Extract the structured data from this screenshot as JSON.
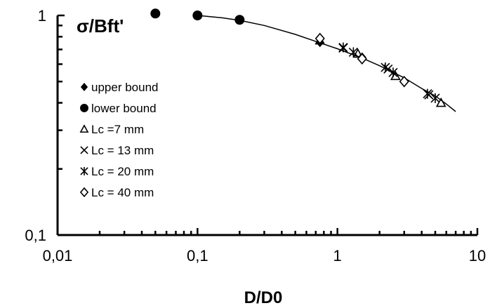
{
  "chart_data": {
    "type": "scatter",
    "xlabel": "D/D0",
    "ylabel": "σ/Bft'",
    "xscale": "log",
    "yscale": "log",
    "xlim": [
      0.01,
      10
    ],
    "ylim": [
      0.1,
      1
    ],
    "x_ticks": [
      {
        "value": 0.01,
        "label": "0,01"
      },
      {
        "value": 0.1,
        "label": "0,1"
      },
      {
        "value": 1,
        "label": "1"
      },
      {
        "value": 10,
        "label": "10"
      }
    ],
    "y_ticks": [
      {
        "value": 0.1,
        "label": "0,1"
      },
      {
        "value": 1,
        "label": "1"
      }
    ],
    "grid": false,
    "legend_position": "left",
    "series": [
      {
        "name": "upper bound",
        "marker": "diamond-filled",
        "x": [
          0.75,
          1.5
        ],
        "y": [
          0.755,
          0.645
        ]
      },
      {
        "name": "lower bound",
        "marker": "circle-filled",
        "x": [
          0.05,
          0.1,
          0.2
        ],
        "y": [
          1.02,
          1.0,
          0.955
        ]
      },
      {
        "name": "Lc =7 mm",
        "marker": "triangle-open",
        "x": [
          0.75,
          1.4,
          2.6,
          5.5
        ],
        "y": [
          0.77,
          0.67,
          0.53,
          0.4
        ]
      },
      {
        "name": "Lc = 13 mm",
        "marker": "x",
        "x": [
          1.1,
          2.3,
          4.5
        ],
        "y": [
          0.71,
          0.57,
          0.435
        ]
      },
      {
        "name": "Lc = 20 mm",
        "marker": "asterisk",
        "x": [
          1.1,
          1.3,
          2.2,
          2.5,
          4.4,
          5.0
        ],
        "y": [
          0.715,
          0.68,
          0.58,
          0.55,
          0.44,
          0.42
        ]
      },
      {
        "name": "Lc = 40 mm",
        "marker": "diamond-open",
        "x": [
          0.75,
          1.5,
          3.0
        ],
        "y": [
          0.785,
          0.635,
          0.5
        ]
      }
    ],
    "fit_line": {
      "x": [
        0.1,
        0.15,
        0.2,
        0.3,
        0.5,
        0.75,
        1.0,
        1.5,
        2.0,
        3.0,
        4.0,
        5.0,
        6.0,
        7.0
      ],
      "y": [
        1.0,
        0.975,
        0.95,
        0.9,
        0.82,
        0.75,
        0.705,
        0.64,
        0.59,
        0.52,
        0.465,
        0.43,
        0.395,
        0.365
      ]
    }
  }
}
